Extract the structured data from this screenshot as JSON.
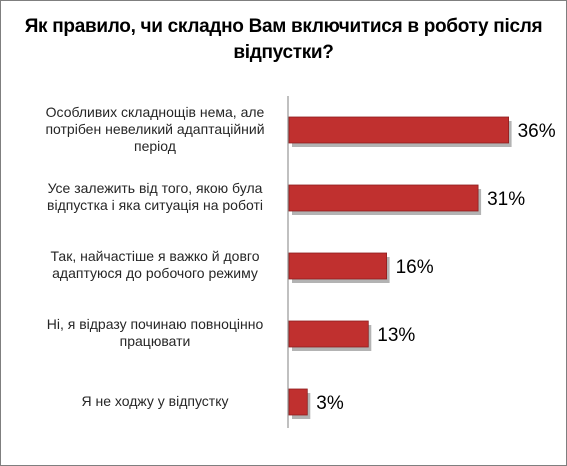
{
  "chart_data": {
    "type": "bar",
    "orientation": "horizontal",
    "title": "Як правило, чи складно Вам включитися в роботу після відпустки?",
    "categories": [
      "Особливих складнощів нема, але потрібен невеликий адаптаційний період",
      "Усе залежить від того, якою була відпустка і яка ситуація на роботі",
      "Так, найчастіше я важко й довго адаптуюся до робочого режиму",
      "Ні, я відразу починаю повноцінно працювати",
      "Я не ходжу у відпустку"
    ],
    "values": [
      36,
      31,
      16,
      13,
      3
    ],
    "value_labels": [
      "36%",
      "31%",
      "16%",
      "13%",
      "3%"
    ],
    "xlim": [
      0,
      40
    ],
    "grid": false,
    "legend": "none",
    "colors": {
      "bar": "#c0302f",
      "bar_dark": "#8e1f1f",
      "axis": "#808080"
    }
  }
}
